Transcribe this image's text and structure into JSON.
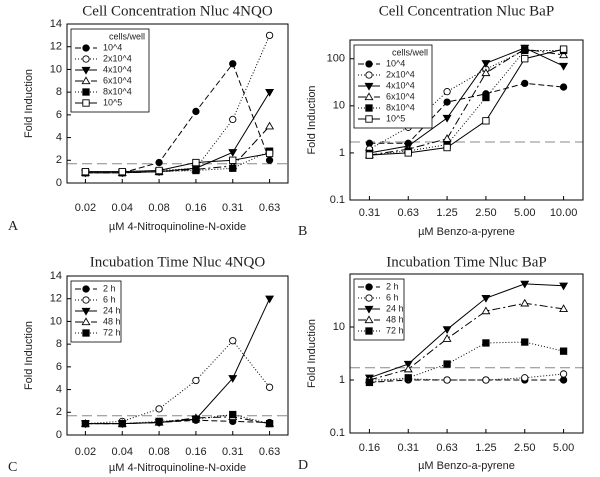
{
  "chart_data": [
    {
      "type": "line",
      "title": "Cell Concentration Nluc 4NQO",
      "panel_label": "A",
      "x_label": "µM 4-Nitroquinoline-N-oxide",
      "y_label": "Fold Induction",
      "legend_title": "cells/well",
      "categories": [
        "0.02",
        "0.04",
        "0.08",
        "0.16",
        "0.31",
        "0.63"
      ],
      "ylim": [
        0,
        14
      ],
      "yticks": [
        0,
        2,
        4,
        6,
        8,
        10,
        12,
        14
      ],
      "log": false,
      "reference_line": 1.7,
      "series": [
        {
          "name": "10^4",
          "marker": "circle-filled",
          "dash": "6,3",
          "values": [
            0.9,
            0.9,
            1.8,
            6.3,
            10.5,
            2.0
          ]
        },
        {
          "name": "2x10^4",
          "marker": "circle-open",
          "dash": "1,2",
          "values": [
            1.0,
            1.0,
            1.1,
            1.3,
            5.6,
            13.0
          ]
        },
        {
          "name": "4x10^4",
          "marker": "triangle-down-filled",
          "dash": "",
          "values": [
            0.9,
            0.9,
            1.0,
            1.3,
            2.7,
            8.0
          ]
        },
        {
          "name": "6x10^4",
          "marker": "triangle-up-open",
          "dash": "8,3,2,3",
          "values": [
            0.9,
            0.9,
            1.0,
            1.2,
            1.5,
            5.0
          ]
        },
        {
          "name": "8x10^4",
          "marker": "square-filled",
          "dash": "1,2",
          "values": [
            0.9,
            0.9,
            1.0,
            1.1,
            1.3,
            2.8
          ]
        },
        {
          "name": "10^5",
          "marker": "square-open",
          "dash": "",
          "values": [
            1.0,
            1.0,
            1.1,
            1.8,
            2.0,
            2.6
          ]
        }
      ]
    },
    {
      "type": "line",
      "title": "Cell Concentration Nluc BaP",
      "panel_label": "B",
      "x_label": "µM Benzo-a-pyrene",
      "y_label": "Fold Induction",
      "legend_title": "cells/well",
      "categories": [
        "0.31",
        "0.63",
        "1.25",
        "2.50",
        "5.00",
        "10.00"
      ],
      "ylim": [
        0.1,
        250
      ],
      "yticks": [
        0.1,
        1,
        10,
        100
      ],
      "log": true,
      "reference_line": 1.7,
      "series": [
        {
          "name": "10^4",
          "marker": "circle-filled",
          "dash": "6,3",
          "values": [
            1.6,
            1.6,
            12,
            18,
            30,
            25
          ]
        },
        {
          "name": "2x10^4",
          "marker": "circle-open",
          "dash": "1,2",
          "values": [
            1.2,
            3.5,
            20,
            60,
            150,
            150
          ]
        },
        {
          "name": "4x10^4",
          "marker": "triangle-down-filled",
          "dash": "",
          "values": [
            1.0,
            1.4,
            5.5,
            80,
            170,
            70
          ]
        },
        {
          "name": "6x10^4",
          "marker": "triangle-up-open",
          "dash": "8,3,2,3",
          "values": [
            0.9,
            1.2,
            2.0,
            50,
            160,
            120
          ]
        },
        {
          "name": "8x10^4",
          "marker": "square-filled",
          "dash": "1,2",
          "values": [
            0.9,
            1.1,
            1.5,
            15,
            150,
            150
          ]
        },
        {
          "name": "10^5",
          "marker": "square-open",
          "dash": "",
          "values": [
            0.9,
            1.0,
            1.3,
            4.8,
            100,
            160
          ]
        }
      ]
    },
    {
      "type": "line",
      "title": "Incubation Time Nluc 4NQO",
      "panel_label": "C",
      "x_label": "µM 4-Nitroquinoline-N-oxide",
      "y_label": "Fold Induction",
      "categories": [
        "0.02",
        "0.04",
        "0.08",
        "0.16",
        "0.31",
        "0.63"
      ],
      "ylim": [
        0,
        14
      ],
      "yticks": [
        0,
        2,
        4,
        6,
        8,
        10,
        12,
        14
      ],
      "log": false,
      "reference_line": 1.7,
      "series": [
        {
          "name": "2 h",
          "marker": "circle-filled",
          "dash": "6,3",
          "values": [
            1.0,
            1.0,
            1.1,
            1.3,
            1.2,
            1.1
          ]
        },
        {
          "name": "6 h",
          "marker": "circle-open",
          "dash": "1,2",
          "values": [
            1.0,
            1.2,
            2.3,
            4.8,
            8.3,
            4.2
          ]
        },
        {
          "name": "24 h",
          "marker": "triangle-down-filled",
          "dash": "",
          "values": [
            1.0,
            1.0,
            1.1,
            1.4,
            5.0,
            12.0
          ]
        },
        {
          "name": "48 h",
          "marker": "triangle-up-open",
          "dash": "8,3,2,3",
          "values": [
            1.0,
            1.0,
            1.1,
            1.5,
            1.6,
            1.0
          ]
        },
        {
          "name": "72 h",
          "marker": "square-filled",
          "dash": "1,2",
          "values": [
            1.0,
            1.0,
            1.2,
            1.4,
            1.8,
            1.0
          ]
        }
      ]
    },
    {
      "type": "line",
      "title": "Incubation Time Nluc BaP",
      "panel_label": "D",
      "x_label": "µM Benzo-a-pyrene",
      "y_label": "Fold Induction",
      "categories": [
        "0.16",
        "0.31",
        "0.63",
        "1.25",
        "2.50",
        "5.00"
      ],
      "ylim": [
        0.1,
        100
      ],
      "yticks": [
        0.1,
        1,
        10
      ],
      "log": true,
      "reference_line": 1.7,
      "series": [
        {
          "name": "2 h",
          "marker": "circle-filled",
          "dash": "6,3",
          "values": [
            0.9,
            1.0,
            1.0,
            1.0,
            1.0,
            1.0
          ]
        },
        {
          "name": "6 h",
          "marker": "circle-open",
          "dash": "1,2",
          "values": [
            1.0,
            1.05,
            1.0,
            1.0,
            1.1,
            1.3
          ]
        },
        {
          "name": "24 h",
          "marker": "triangle-down-filled",
          "dash": "",
          "values": [
            1.1,
            2.0,
            9,
            35,
            65,
            60
          ]
        },
        {
          "name": "48 h",
          "marker": "triangle-up-open",
          "dash": "8,3,2,3",
          "values": [
            1.0,
            1.6,
            6,
            20,
            28,
            22
          ]
        },
        {
          "name": "72 h",
          "marker": "square-filled",
          "dash": "1,2",
          "values": [
            0.9,
            1.1,
            2.0,
            5,
            5.2,
            3.5
          ]
        }
      ]
    }
  ]
}
